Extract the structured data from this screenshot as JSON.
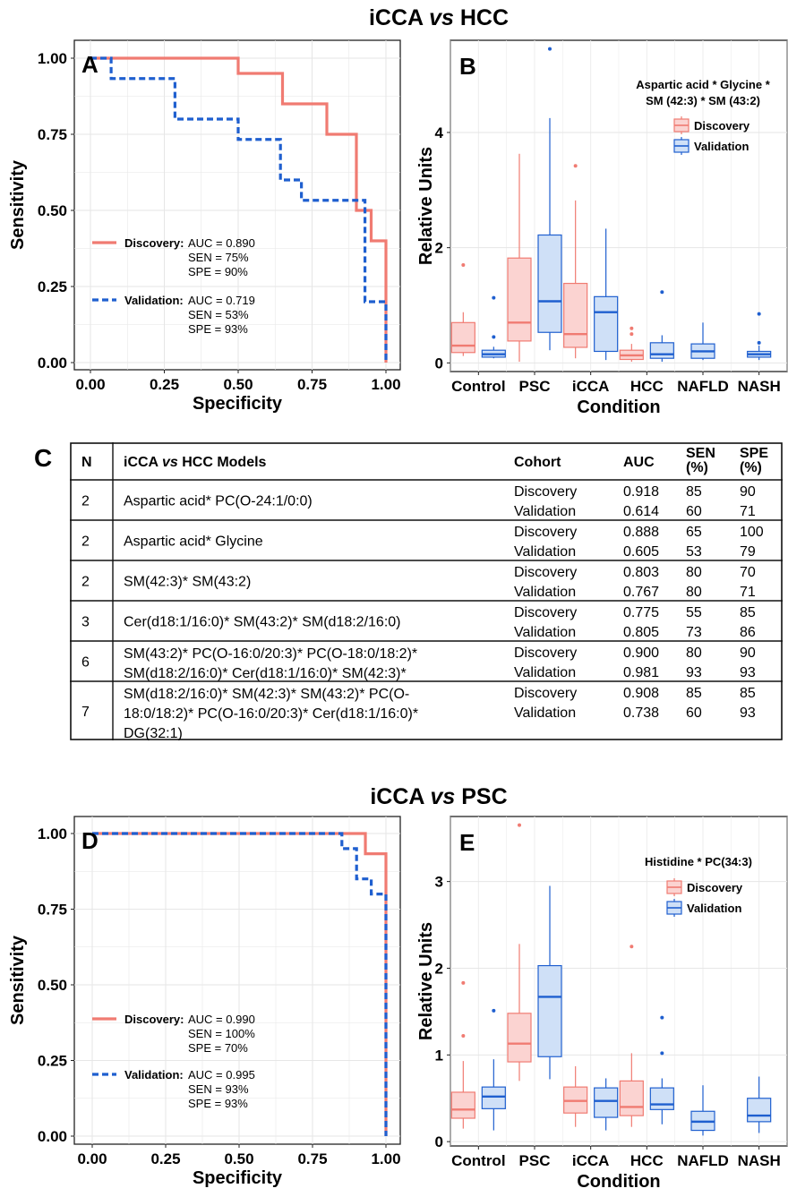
{
  "sections": {
    "top": {
      "title_a": "iCCA ",
      "title_vs": "vs",
      "title_b": " HCC"
    },
    "bottom": {
      "title_a": "iCCA ",
      "title_vs": "vs",
      "title_b": " PSC"
    }
  },
  "colors": {
    "discovery": "#f07b72",
    "validation": "#1f5fcf",
    "discovery_fill": "#fbd3d1",
    "validation_fill": "#cfe0f7"
  },
  "chart_data": [
    {
      "id": "A",
      "type": "line",
      "panel_label": "A",
      "xlabel": "Specificity",
      "ylabel": "Sensitivity",
      "xlim": [
        0,
        1
      ],
      "ylim": [
        0,
        1
      ],
      "xticks": [
        "0.00",
        "0.25",
        "0.50",
        "0.75",
        "1.00"
      ],
      "yticks": [
        "0.00",
        "0.25",
        "0.50",
        "0.75",
        "1.00"
      ],
      "grid": true,
      "series": [
        {
          "name": "Discovery",
          "style": "solid",
          "points": [
            [
              0,
              1
            ],
            [
              0.5,
              1
            ],
            [
              0.5,
              0.95
            ],
            [
              0.65,
              0.95
            ],
            [
              0.65,
              0.85
            ],
            [
              0.8,
              0.85
            ],
            [
              0.8,
              0.75
            ],
            [
              0.9,
              0.75
            ],
            [
              0.9,
              0.5
            ],
            [
              0.95,
              0.5
            ],
            [
              0.95,
              0.4
            ],
            [
              1,
              0.4
            ],
            [
              1,
              0
            ]
          ],
          "stats": [
            "AUC = 0.890",
            "SEN = 75%",
            "SPE = 90%"
          ]
        },
        {
          "name": "Validation",
          "style": "dashed",
          "points": [
            [
              0,
              1
            ],
            [
              0.07,
              1
            ],
            [
              0.07,
              0.933
            ],
            [
              0.286,
              0.933
            ],
            [
              0.286,
              0.8
            ],
            [
              0.5,
              0.8
            ],
            [
              0.5,
              0.733
            ],
            [
              0.643,
              0.733
            ],
            [
              0.643,
              0.6
            ],
            [
              0.714,
              0.6
            ],
            [
              0.714,
              0.533
            ],
            [
              0.929,
              0.533
            ],
            [
              0.929,
              0.2
            ],
            [
              1,
              0.2
            ],
            [
              1,
              0
            ]
          ],
          "stats": [
            "AUC = 0.719",
            "SEN = 53%",
            "SPE = 93%"
          ]
        }
      ]
    },
    {
      "id": "B",
      "type": "box",
      "panel_label": "B",
      "xlabel": "Condition",
      "ylabel": "Relative Units",
      "ylim": [
        -0.15,
        5.6
      ],
      "yticks": [
        0,
        2,
        4
      ],
      "legend_title": "Aspartic acid * Glycine *\nSM (42:3) * SM (43:2)",
      "legend": [
        "Discovery",
        "Validation"
      ],
      "categories": [
        "Control",
        "PSC",
        "iCCA",
        "HCC",
        "NAFLD",
        "NASH"
      ],
      "discovery": [
        {
          "min": 0.12,
          "q1": 0.18,
          "med": 0.3,
          "q3": 0.7,
          "max": 0.88,
          "out": [
            1.7
          ]
        },
        {
          "min": 0.02,
          "q1": 0.38,
          "med": 0.7,
          "q3": 1.82,
          "max": 3.63,
          "out": []
        },
        {
          "min": 0.08,
          "q1": 0.27,
          "med": 0.5,
          "q3": 1.38,
          "max": 2.82,
          "out": [
            3.42
          ]
        },
        {
          "min": 0.02,
          "q1": 0.06,
          "med": 0.13,
          "q3": 0.22,
          "max": 0.33,
          "out": [
            0.5,
            0.6
          ]
        },
        null,
        null
      ],
      "validation": [
        {
          "min": 0.08,
          "q1": 0.1,
          "med": 0.15,
          "q3": 0.22,
          "max": 0.28,
          "out": [
            0.45,
            1.13
          ]
        },
        {
          "min": 0.22,
          "q1": 0.53,
          "med": 1.07,
          "q3": 2.22,
          "max": 4.25,
          "out": [
            5.45
          ]
        },
        {
          "min": 0.05,
          "q1": 0.2,
          "med": 0.88,
          "q3": 1.15,
          "max": 2.33,
          "out": []
        },
        {
          "min": 0.02,
          "q1": 0.08,
          "med": 0.15,
          "q3": 0.35,
          "max": 0.48,
          "out": [
            1.23
          ]
        },
        {
          "min": 0.05,
          "q1": 0.08,
          "med": 0.2,
          "q3": 0.33,
          "max": 0.7,
          "out": []
        },
        {
          "min": 0.05,
          "q1": 0.1,
          "med": 0.15,
          "q3": 0.2,
          "max": 0.3,
          "out": [
            0.35,
            0.85
          ]
        }
      ]
    },
    {
      "id": "D",
      "type": "line",
      "panel_label": "D",
      "xlabel": "Specificity",
      "ylabel": "Sensitivity",
      "xlim": [
        0,
        1
      ],
      "ylim": [
        0,
        1
      ],
      "xticks": [
        "0.00",
        "0.25",
        "0.50",
        "0.75",
        "1.00"
      ],
      "yticks": [
        "0.00",
        "0.25",
        "0.50",
        "0.75",
        "1.00"
      ],
      "grid": true,
      "series": [
        {
          "name": "Discovery",
          "style": "solid",
          "points": [
            [
              0,
              1
            ],
            [
              0.93,
              1
            ],
            [
              0.93,
              0.933
            ],
            [
              1,
              0.933
            ],
            [
              1,
              0
            ]
          ],
          "stats": [
            "AUC = 0.990",
            "SEN = 100%",
            "SPE = 70%"
          ]
        },
        {
          "name": "Validation",
          "style": "dashed",
          "points": [
            [
              0,
              1
            ],
            [
              0.85,
              1
            ],
            [
              0.85,
              0.95
            ],
            [
              0.9,
              0.95
            ],
            [
              0.9,
              0.85
            ],
            [
              0.95,
              0.85
            ],
            [
              0.95,
              0.8
            ],
            [
              1,
              0.8
            ],
            [
              1,
              0
            ]
          ],
          "stats": [
            "AUC = 0.995",
            "SEN = 93%",
            "SPE = 93%"
          ]
        }
      ]
    },
    {
      "id": "E",
      "type": "box",
      "panel_label": "E",
      "xlabel": "Condition",
      "ylabel": "Relative Units",
      "ylim": [
        -0.05,
        3.75
      ],
      "yticks": [
        0,
        1,
        2,
        3
      ],
      "legend_title": "Histidine * PC(34:3)",
      "legend": [
        "Discovery",
        "Validation"
      ],
      "categories": [
        "Control",
        "PSC",
        "iCCA",
        "HCC",
        "NAFLD",
        "NASH"
      ],
      "discovery": [
        {
          "min": 0.15,
          "q1": 0.27,
          "med": 0.37,
          "q3": 0.57,
          "max": 0.93,
          "out": [
            1.22,
            1.83
          ]
        },
        {
          "min": 0.7,
          "q1": 0.92,
          "med": 1.13,
          "q3": 1.48,
          "max": 2.28,
          "out": [
            3.65
          ]
        },
        {
          "min": 0.17,
          "q1": 0.33,
          "med": 0.47,
          "q3": 0.63,
          "max": 0.87,
          "out": []
        },
        {
          "min": 0.17,
          "q1": 0.3,
          "med": 0.4,
          "q3": 0.7,
          "max": 1.02,
          "out": [
            2.25
          ]
        },
        null,
        null
      ],
      "validation": [
        {
          "min": 0.13,
          "q1": 0.38,
          "med": 0.52,
          "q3": 0.63,
          "max": 0.95,
          "out": [
            1.51
          ]
        },
        {
          "min": 0.72,
          "q1": 0.98,
          "med": 1.67,
          "q3": 2.03,
          "max": 2.95,
          "out": []
        },
        {
          "min": 0.13,
          "q1": 0.28,
          "med": 0.47,
          "q3": 0.62,
          "max": 0.73,
          "out": []
        },
        {
          "min": 0.2,
          "q1": 0.37,
          "med": 0.43,
          "q3": 0.62,
          "max": 0.73,
          "out": [
            1.02,
            1.43
          ]
        },
        {
          "min": 0.07,
          "q1": 0.13,
          "med": 0.23,
          "q3": 0.35,
          "max": 0.65,
          "out": []
        },
        {
          "min": 0.1,
          "q1": 0.23,
          "med": 0.3,
          "q3": 0.5,
          "max": 0.75,
          "out": []
        }
      ]
    }
  ],
  "table": {
    "label": "C",
    "headers": {
      "n": "N",
      "model_a": "iCCA ",
      "model_vs": "vs",
      "model_b": " HCC Models",
      "cohort": "Cohort",
      "auc": "AUC",
      "sen": [
        "SEN",
        "(%)"
      ],
      "spe": [
        "SPE",
        "(%)"
      ]
    },
    "rows": [
      {
        "n": "2",
        "model": [
          "Aspartic acid* PC(O-24:1/0:0)"
        ],
        "cohorts": [
          [
            "Discovery",
            "0.918",
            "85",
            "90"
          ],
          [
            "Validation",
            "0.614",
            "60",
            "71"
          ]
        ]
      },
      {
        "n": "2",
        "model": [
          "Aspartic acid* Glycine"
        ],
        "cohorts": [
          [
            "Discovery",
            "0.888",
            "65",
            "100"
          ],
          [
            "Validation",
            "0.605",
            "53",
            "79"
          ]
        ]
      },
      {
        "n": "2",
        "model": [
          "SM(42:3)* SM(43:2)"
        ],
        "cohorts": [
          [
            "Discovery",
            "0.803",
            "80",
            "70"
          ],
          [
            "Validation",
            "0.767",
            "80",
            "71"
          ]
        ]
      },
      {
        "n": "3",
        "model": [
          "Cer(d18:1/16:0)* SM(43:2)* SM(d18:2/16:0)"
        ],
        "cohorts": [
          [
            "Discovery",
            "0.775",
            "55",
            "85"
          ],
          [
            "Validation",
            "0.805",
            "73",
            "86"
          ]
        ]
      },
      {
        "n": "6",
        "model": [
          "SM(43:2)* PC(O-16:0/20:3)* PC(O-18:0/18:2)*",
          "SM(d18:2/16:0)* Cer(d18:1/16:0)* SM(42:3)*"
        ],
        "cohorts": [
          [
            "Discovery",
            "0.900",
            "80",
            "90"
          ],
          [
            "Validation",
            "0.981",
            "93",
            "93"
          ]
        ]
      },
      {
        "n": "7",
        "model": [
          "SM(d18:2/16:0)* SM(42:3)* SM(43:2)* PC(O-",
          "18:0/18:2)* PC(O-16:0/20:3)* Cer(d18:1/16:0)*",
          "DG(32:1)"
        ],
        "cohorts": [
          [
            "Discovery",
            "0.908",
            "85",
            "85"
          ],
          [
            "Validation",
            "0.738",
            "60",
            "93"
          ]
        ]
      }
    ]
  }
}
